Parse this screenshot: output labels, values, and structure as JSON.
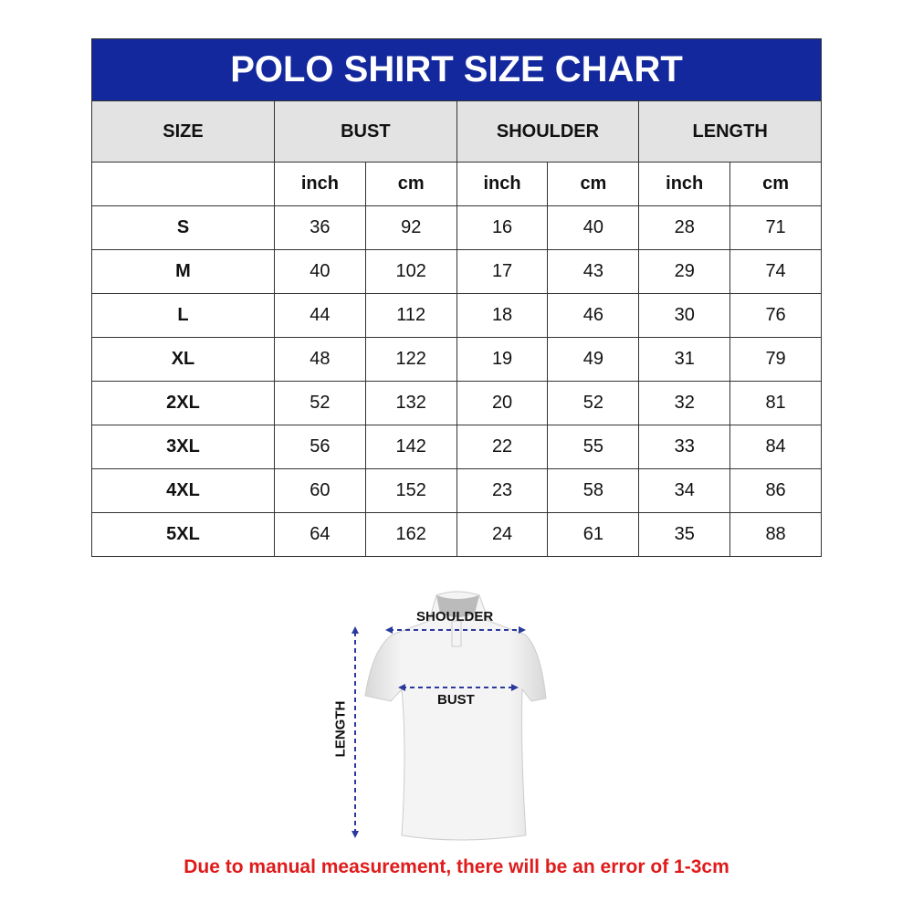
{
  "title": "POLO SHIRT SIZE CHART",
  "headers": [
    "SIZE",
    "BUST",
    "SHOULDER",
    "LENGTH"
  ],
  "units": [
    "inch",
    "cm",
    "inch",
    "cm",
    "inch",
    "cm"
  ],
  "rows": [
    {
      "size": "S",
      "values": [
        "36",
        "92",
        "16",
        "40",
        "28",
        "71"
      ]
    },
    {
      "size": "M",
      "values": [
        "40",
        "102",
        "17",
        "43",
        "29",
        "74"
      ]
    },
    {
      "size": "L",
      "values": [
        "44",
        "112",
        "18",
        "46",
        "30",
        "76"
      ]
    },
    {
      "size": "XL",
      "values": [
        "48",
        "122",
        "19",
        "49",
        "31",
        "79"
      ]
    },
    {
      "size": "2XL",
      "values": [
        "52",
        "132",
        "20",
        "52",
        "32",
        "81"
      ]
    },
    {
      "size": "3XL",
      "values": [
        "56",
        "142",
        "22",
        "55",
        "33",
        "84"
      ]
    },
    {
      "size": "4XL",
      "values": [
        "60",
        "152",
        "23",
        "58",
        "34",
        "86"
      ]
    },
    {
      "size": "5XL",
      "values": [
        "64",
        "162",
        "24",
        "61",
        "35",
        "88"
      ]
    }
  ],
  "diagram": {
    "shoulder_label": "SHOULDER",
    "bust_label": "BUST",
    "length_label": "LENGTH"
  },
  "note": "Due to manual measurement, there will be an error of 1-3cm",
  "colors": {
    "header_blue": "#13289c",
    "header_gray": "#e3e3e3",
    "note_red": "#e01b1b",
    "arrow_blue": "#2a3a9c"
  }
}
